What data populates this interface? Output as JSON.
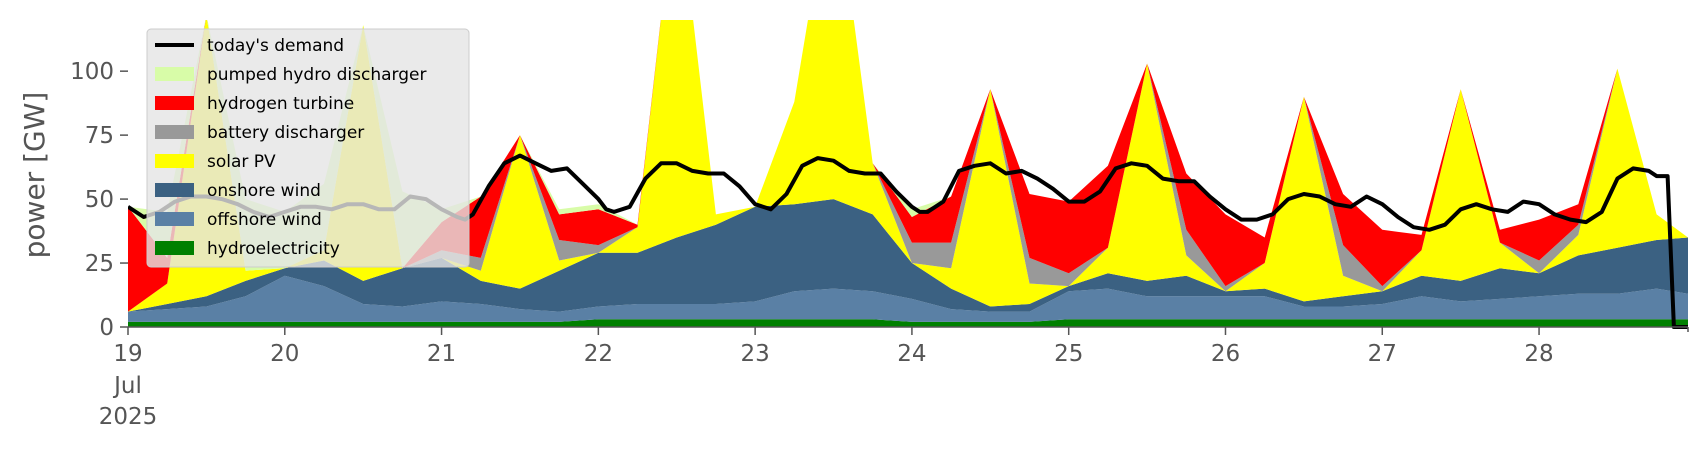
{
  "chart_data": {
    "type": "area",
    "ylabel": "power [GW]",
    "ylim": [
      0,
      120
    ],
    "xlim": [
      19.0,
      28.95
    ],
    "y_ticks": [
      0,
      25,
      50,
      75,
      100
    ],
    "x_ticks": [
      {
        "value": 19,
        "label": "19",
        "sub": [
          "Jul",
          "2025"
        ]
      },
      {
        "value": 20,
        "label": "20"
      },
      {
        "value": 21,
        "label": "21"
      },
      {
        "value": 22,
        "label": "22"
      },
      {
        "value": 23,
        "label": "23"
      },
      {
        "value": 24,
        "label": "24"
      },
      {
        "value": 25,
        "label": "25"
      },
      {
        "value": 26,
        "label": "26"
      },
      {
        "value": 27,
        "label": "27"
      },
      {
        "value": 28,
        "label": "28"
      }
    ],
    "grid": false,
    "legend_position": "upper-left",
    "demand": {
      "name": "today's demand",
      "color": "#000000",
      "points": [
        [
          19.0,
          47
        ],
        [
          19.1,
          43
        ],
        [
          19.2,
          45
        ],
        [
          19.3,
          49
        ],
        [
          19.4,
          51
        ],
        [
          19.5,
          51
        ],
        [
          19.6,
          50
        ],
        [
          19.7,
          48
        ],
        [
          19.8,
          45
        ],
        [
          19.9,
          43
        ],
        [
          20.0,
          45
        ],
        [
          20.1,
          47
        ],
        [
          20.2,
          47
        ],
        [
          20.3,
          46
        ],
        [
          20.4,
          48
        ],
        [
          20.5,
          48
        ],
        [
          20.6,
          46
        ],
        [
          20.7,
          46
        ],
        [
          20.8,
          51
        ],
        [
          20.9,
          50
        ],
        [
          21.0,
          46
        ],
        [
          21.1,
          43
        ],
        [
          21.15,
          42
        ],
        [
          21.2,
          44
        ],
        [
          21.3,
          55
        ],
        [
          21.4,
          64
        ],
        [
          21.5,
          67
        ],
        [
          21.6,
          64
        ],
        [
          21.7,
          61
        ],
        [
          21.8,
          62
        ],
        [
          21.9,
          56
        ],
        [
          22.0,
          50
        ],
        [
          22.05,
          46
        ],
        [
          22.1,
          45
        ],
        [
          22.2,
          47
        ],
        [
          22.3,
          58
        ],
        [
          22.4,
          64
        ],
        [
          22.5,
          64
        ],
        [
          22.6,
          61
        ],
        [
          22.7,
          60
        ],
        [
          22.8,
          60
        ],
        [
          22.9,
          55
        ],
        [
          23.0,
          48
        ],
        [
          23.1,
          46
        ],
        [
          23.2,
          52
        ],
        [
          23.3,
          63
        ],
        [
          23.4,
          66
        ],
        [
          23.5,
          65
        ],
        [
          23.6,
          61
        ],
        [
          23.7,
          60
        ],
        [
          23.8,
          60
        ],
        [
          23.9,
          53
        ],
        [
          24.0,
          47
        ],
        [
          24.05,
          45
        ],
        [
          24.1,
          45
        ],
        [
          24.2,
          49
        ],
        [
          24.3,
          61
        ],
        [
          24.4,
          63
        ],
        [
          24.5,
          64
        ],
        [
          24.6,
          60
        ],
        [
          24.7,
          61
        ],
        [
          24.8,
          58
        ],
        [
          24.9,
          54
        ],
        [
          25.0,
          49
        ],
        [
          25.1,
          49
        ],
        [
          25.2,
          53
        ],
        [
          25.3,
          62
        ],
        [
          25.4,
          64
        ],
        [
          25.5,
          63
        ],
        [
          25.6,
          58
        ],
        [
          25.7,
          57
        ],
        [
          25.8,
          57
        ],
        [
          25.9,
          51
        ],
        [
          26.0,
          46
        ],
        [
          26.1,
          42
        ],
        [
          26.2,
          42
        ],
        [
          26.3,
          44
        ],
        [
          26.4,
          50
        ],
        [
          26.5,
          52
        ],
        [
          26.6,
          51
        ],
        [
          26.7,
          48
        ],
        [
          26.8,
          47
        ],
        [
          26.9,
          51
        ],
        [
          27.0,
          48
        ],
        [
          27.1,
          43
        ],
        [
          27.2,
          39
        ],
        [
          27.3,
          38
        ],
        [
          27.4,
          40
        ],
        [
          27.5,
          46
        ],
        [
          27.6,
          48
        ],
        [
          27.7,
          46
        ],
        [
          27.8,
          45
        ],
        [
          27.9,
          49
        ],
        [
          28.0,
          48
        ],
        [
          28.1,
          44
        ],
        [
          28.2,
          42
        ],
        [
          28.3,
          41
        ],
        [
          28.4,
          45
        ],
        [
          28.5,
          58
        ],
        [
          28.6,
          62
        ],
        [
          28.7,
          61
        ],
        [
          28.75,
          59
        ],
        [
          28.82,
          59
        ],
        [
          28.86,
          0
        ],
        [
          28.95,
          0
        ]
      ]
    },
    "series": [
      {
        "name": "hydroelectricity",
        "color": "#008000"
      },
      {
        "name": "offshore wind",
        "color": "#5a80a5"
      },
      {
        "name": "onshore wind",
        "color": "#3b6182"
      },
      {
        "name": "solar PV",
        "color": "#ffff00"
      },
      {
        "name": "battery discharger",
        "color": "#999999"
      },
      {
        "name": "hydrogen turbine",
        "color": "#ff0000"
      },
      {
        "name": "pumped hydro discharger",
        "color": "#d8fca8"
      }
    ],
    "x": [
      19.0,
      19.25,
      19.5,
      19.75,
      20.0,
      20.25,
      20.5,
      20.75,
      21.0,
      21.25,
      21.5,
      21.75,
      22.0,
      22.25,
      22.5,
      22.75,
      23.0,
      23.25,
      23.5,
      23.75,
      24.0,
      24.25,
      24.5,
      24.75,
      25.0,
      25.25,
      25.5,
      25.75,
      26.0,
      26.25,
      26.5,
      26.75,
      27.0,
      27.25,
      27.5,
      27.75,
      28.0,
      28.25,
      28.5,
      28.75,
      28.95
    ],
    "components": {
      "hydroelectricity": [
        2,
        2,
        2,
        2,
        2,
        2,
        2,
        2,
        2,
        2,
        2,
        2,
        3,
        3,
        3,
        3,
        3,
        3,
        3,
        3,
        2,
        2,
        2,
        2,
        3,
        3,
        3,
        3,
        3,
        3,
        3,
        3,
        3,
        3,
        3,
        3,
        3,
        3,
        3,
        3,
        3
      ],
      "offshore wind": [
        4,
        5,
        6,
        10,
        18,
        14,
        7,
        6,
        8,
        7,
        5,
        4,
        5,
        6,
        6,
        6,
        7,
        11,
        12,
        11,
        9,
        5,
        4,
        4,
        11,
        12,
        9,
        9,
        9,
        9,
        5,
        5,
        6,
        9,
        7,
        8,
        9,
        10,
        10,
        12,
        10
      ],
      "onshore wind": [
        0,
        2,
        4,
        6,
        3,
        10,
        9,
        15,
        17,
        9,
        8,
        16,
        21,
        20,
        26,
        31,
        37,
        34,
        35,
        30,
        14,
        8,
        2,
        3,
        2,
        6,
        6,
        8,
        2,
        3,
        2,
        4,
        5,
        8,
        8,
        12,
        9,
        15,
        18,
        19,
        22
      ],
      "solar PV": [
        0,
        8,
        110,
        4,
        0,
        4,
        100,
        0,
        0,
        4,
        60,
        4,
        0,
        10,
        140,
        4,
        0,
        40,
        130,
        20,
        0,
        8,
        85,
        8,
        0,
        10,
        85,
        8,
        0,
        10,
        80,
        8,
        0,
        10,
        75,
        10,
        0,
        8,
        70,
        10,
        0
      ],
      "battery discharger": [
        0,
        0,
        0,
        0,
        0,
        0,
        0,
        0,
        3,
        5,
        0,
        8,
        3,
        0,
        0,
        0,
        0,
        0,
        0,
        0,
        8,
        10,
        0,
        10,
        5,
        0,
        0,
        10,
        2,
        0,
        0,
        12,
        2,
        0,
        0,
        0,
        5,
        4,
        0,
        0,
        0
      ],
      "hydrogen turbine": [
        41,
        10,
        0,
        0,
        0,
        0,
        0,
        0,
        11,
        24,
        0,
        10,
        14,
        1,
        0,
        0,
        0,
        0,
        0,
        0,
        10,
        18,
        0,
        25,
        28,
        32,
        0,
        22,
        28,
        10,
        0,
        20,
        22,
        6,
        0,
        5,
        16,
        8,
        0,
        0,
        0
      ],
      "pumped hydro discharger": [
        0,
        18,
        0,
        28,
        22,
        26,
        0,
        30,
        5,
        0,
        0,
        2,
        2,
        0,
        0,
        0,
        0,
        0,
        0,
        0,
        3,
        0,
        0,
        0,
        0,
        0,
        0,
        0,
        0,
        0,
        0,
        0,
        0,
        0,
        0,
        0,
        0,
        0,
        0,
        0,
        0
      ]
    },
    "legend": [
      {
        "label": "today's demand",
        "color": "#000000",
        "kind": "line"
      },
      {
        "label": "pumped hydro discharger",
        "color": "#d8fca8",
        "kind": "patch"
      },
      {
        "label": "hydrogen turbine",
        "color": "#ff0000",
        "kind": "patch"
      },
      {
        "label": "battery discharger",
        "color": "#999999",
        "kind": "patch"
      },
      {
        "label": "solar PV",
        "color": "#ffff00",
        "kind": "patch"
      },
      {
        "label": "onshore wind",
        "color": "#3b6182",
        "kind": "patch"
      },
      {
        "label": "offshore wind",
        "color": "#5a80a5",
        "kind": "patch"
      },
      {
        "label": "hydroelectricity",
        "color": "#008000",
        "kind": "patch"
      }
    ]
  }
}
